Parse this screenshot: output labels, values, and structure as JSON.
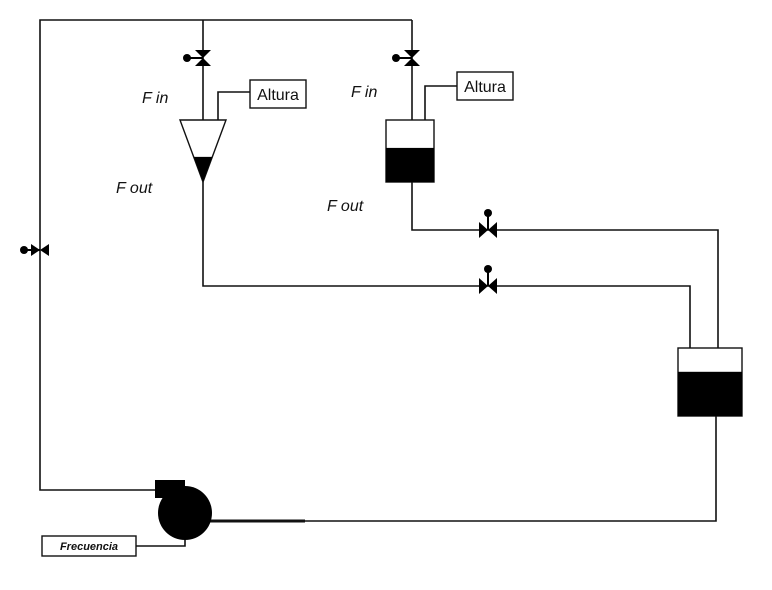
{
  "labels": {
    "fin_left": "F in",
    "fin_right": "F in",
    "fout_left": "F out",
    "fout_right": "F out",
    "altura_left": "Altura",
    "altura_right": "Altura",
    "frecuencia": "Frecuencia"
  },
  "levels": {
    "conical_tank_fill": 0.45,
    "upper_tank_fill": 0.55,
    "lower_tank_fill": 0.65
  },
  "colors": {
    "line": "#111111",
    "liquid": "#000000",
    "background": "#ffffff"
  }
}
